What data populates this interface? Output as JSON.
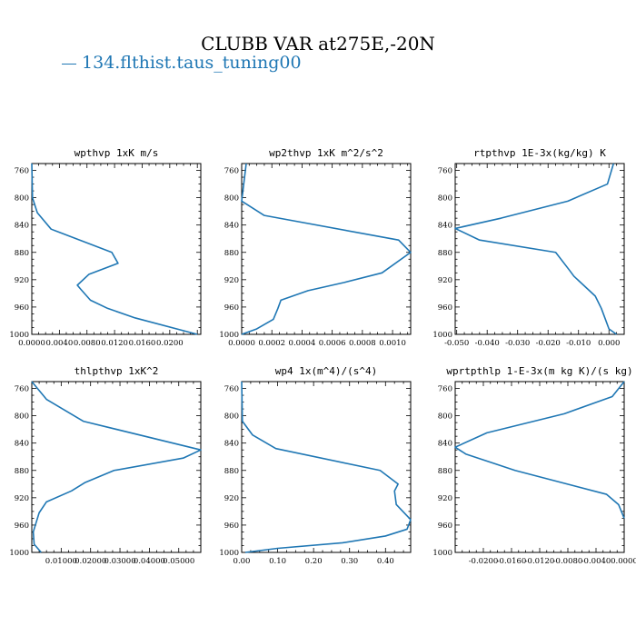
{
  "title": "CLUBB VAR at275E,-20N",
  "legend": {
    "label": "134.flthist.taus_tuning00",
    "color": "#1f77b4"
  },
  "chart_data": [
    {
      "type": "line",
      "title": "wpthvp  1xK m/s",
      "ylim": [
        1000,
        750
      ],
      "xlim": [
        0.0,
        0.0245
      ],
      "yticks": [
        "760",
        "800",
        "840",
        "880",
        "920",
        "960",
        "1000"
      ],
      "xticks": [
        "0.0000",
        "0.0040",
        "0.0080",
        "0.0120",
        "0.0160",
        "0.0200"
      ],
      "x": [
        0.0,
        0.0001,
        0.0008,
        0.0028,
        0.0116,
        0.0125,
        0.0083,
        0.0066,
        0.0071,
        0.0085,
        0.011,
        0.015,
        0.024
      ],
      "y": [
        750,
        800,
        822,
        846,
        880,
        896,
        912,
        928,
        934,
        950,
        962,
        976,
        1000
      ]
    },
    {
      "type": "line",
      "title": "wp2thvp  1xK m^2/s^2",
      "ylim": [
        1000,
        750
      ],
      "xlim": [
        0.0,
        0.00112
      ],
      "yticks": [
        "760",
        "800",
        "840",
        "880",
        "920",
        "960",
        "1000"
      ],
      "xticks": [
        "0.0000",
        "0.0002",
        "0.0004",
        "0.0006",
        "0.0008",
        "0.0010"
      ],
      "x": [
        3e-05,
        0.0,
        0.00015,
        0.00104,
        0.00112,
        0.00093,
        0.00068,
        0.00044,
        0.00026,
        0.00024,
        0.00021,
        0.0001,
        0.0
      ],
      "y": [
        750,
        805,
        826,
        862,
        880,
        910,
        924,
        936,
        950,
        962,
        978,
        992,
        1000
      ]
    },
    {
      "type": "line",
      "title": "rtpthvp  1E-3x(kg/kg) K",
      "ylim": [
        1000,
        750
      ],
      "xlim": [
        -0.0505,
        0.005
      ],
      "yticks": [
        "760",
        "800",
        "840",
        "880",
        "920",
        "960",
        "1000"
      ],
      "xticks": [
        "-0.050",
        "-0.040",
        "-0.030",
        "-0.020",
        "-0.010",
        "0.000"
      ],
      "x": [
        0.0015,
        -0.0005,
        -0.0135,
        -0.0355,
        -0.0505,
        -0.0425,
        -0.0175,
        -0.013,
        -0.0115,
        -0.0045,
        -0.0025,
        -0.001,
        0.0,
        0.0025
      ],
      "y": [
        750,
        780,
        805,
        830,
        845,
        862,
        880,
        906,
        915,
        944,
        962,
        980,
        992,
        1000
      ]
    },
    {
      "type": "line",
      "title": "thlpthvp  1xK^2",
      "ylim": [
        1000,
        750
      ],
      "xlim": [
        0.0,
        0.0575
      ],
      "yticks": [
        "760",
        "800",
        "840",
        "880",
        "920",
        "960",
        "1000"
      ],
      "xticks": [
        "0.01000",
        "0.02000",
        "0.03000",
        "0.04000",
        "0.05000"
      ],
      "x": [
        0.0,
        0.005,
        0.0175,
        0.0575,
        0.0515,
        0.028,
        0.018,
        0.0135,
        0.005,
        0.0025,
        0.0005,
        0.0008,
        0.0032
      ],
      "y": [
        750,
        776,
        808,
        850,
        862,
        880,
        898,
        910,
        926,
        942,
        970,
        988,
        1000
      ]
    },
    {
      "type": "line",
      "title": "wp4  1x(m^4)/(s^4)",
      "ylim": [
        1000,
        750
      ],
      "xlim": [
        0.0,
        0.47
      ],
      "yticks": [
        "760",
        "800",
        "840",
        "880",
        "920",
        "960",
        "1000"
      ],
      "xticks": [
        "0.00",
        "0.10",
        "0.20",
        "0.30",
        "0.40"
      ],
      "x": [
        0.0,
        0.002,
        0.03,
        0.095,
        0.385,
        0.435,
        0.425,
        0.43,
        0.47,
        0.46,
        0.4,
        0.28,
        0.1,
        0.01
      ],
      "y": [
        750,
        808,
        828,
        848,
        880,
        900,
        910,
        930,
        952,
        966,
        976,
        986,
        994,
        1000
      ]
    },
    {
      "type": "line",
      "title": "wprtpthlp  1-E-3x(m kg K)/(s kg)",
      "ylim": [
        1000,
        750
      ],
      "xlim": [
        -0.024,
        0.0
      ],
      "yticks": [
        "760",
        "800",
        "840",
        "880",
        "920",
        "960",
        "1000"
      ],
      "xticks": [
        "-0.0200",
        "-0.0160",
        "-0.0120",
        "-0.0080",
        "-0.0040",
        "0.0000"
      ],
      "x": [
        0.0,
        -0.0017,
        -0.0085,
        -0.0195,
        -0.024,
        -0.0225,
        -0.0155,
        -0.0025,
        -0.0008,
        0.0
      ],
      "y": [
        750,
        772,
        797,
        825,
        846,
        856,
        880,
        915,
        930,
        950
      ]
    }
  ]
}
